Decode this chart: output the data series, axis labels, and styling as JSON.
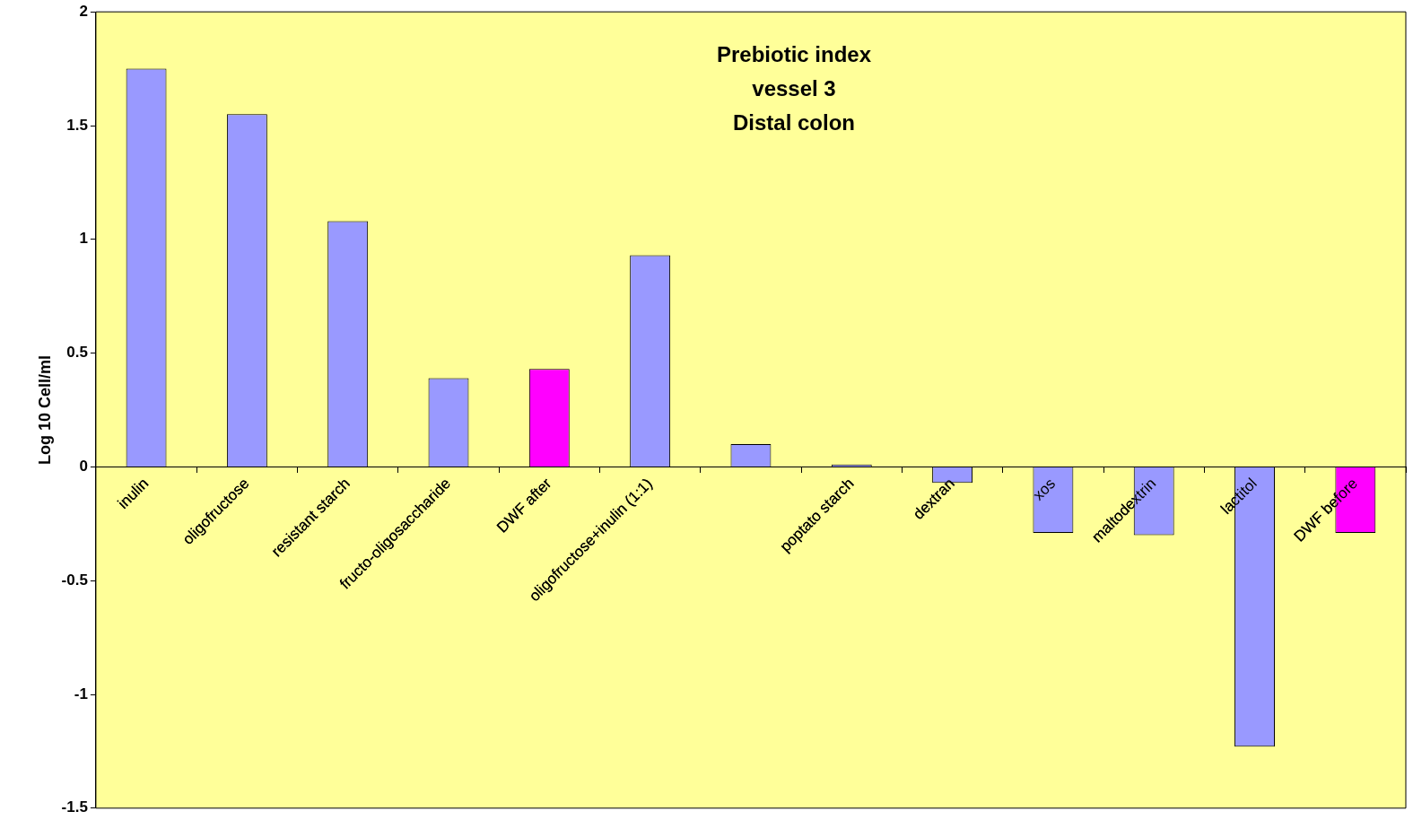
{
  "chart_data": {
    "type": "bar",
    "title": "Prebiotic index\nvessel 3\nDistal colon",
    "ylabel": "Log 10 Cell/ml",
    "categories": [
      "inulin",
      "oligofructose",
      "resistant starch",
      "fructo-oligosaccharide",
      "DWF after",
      "oligofructose+inulin (1:1)",
      null,
      "poptato starch",
      "dextran",
      "xos",
      "maltodextrin",
      "lactitol",
      "DWF before"
    ],
    "values": [
      1.75,
      1.55,
      1.08,
      0.39,
      0.43,
      0.93,
      0.1,
      0.01,
      -0.07,
      -0.29,
      -0.3,
      -1.23,
      -0.29
    ],
    "colors": [
      "#9999ff",
      "#9999ff",
      "#9999ff",
      "#9999ff",
      "#ff00ff",
      "#9999ff",
      "#9999ff",
      "#9999ff",
      "#9999ff",
      "#9999ff",
      "#9999ff",
      "#9999ff",
      "#ff00ff"
    ],
    "ylim": [
      -1.5,
      2
    ],
    "yticks": [
      -1.5,
      -1,
      -0.5,
      0,
      0.5,
      1,
      1.5,
      2
    ],
    "grid": false,
    "legend": false
  }
}
